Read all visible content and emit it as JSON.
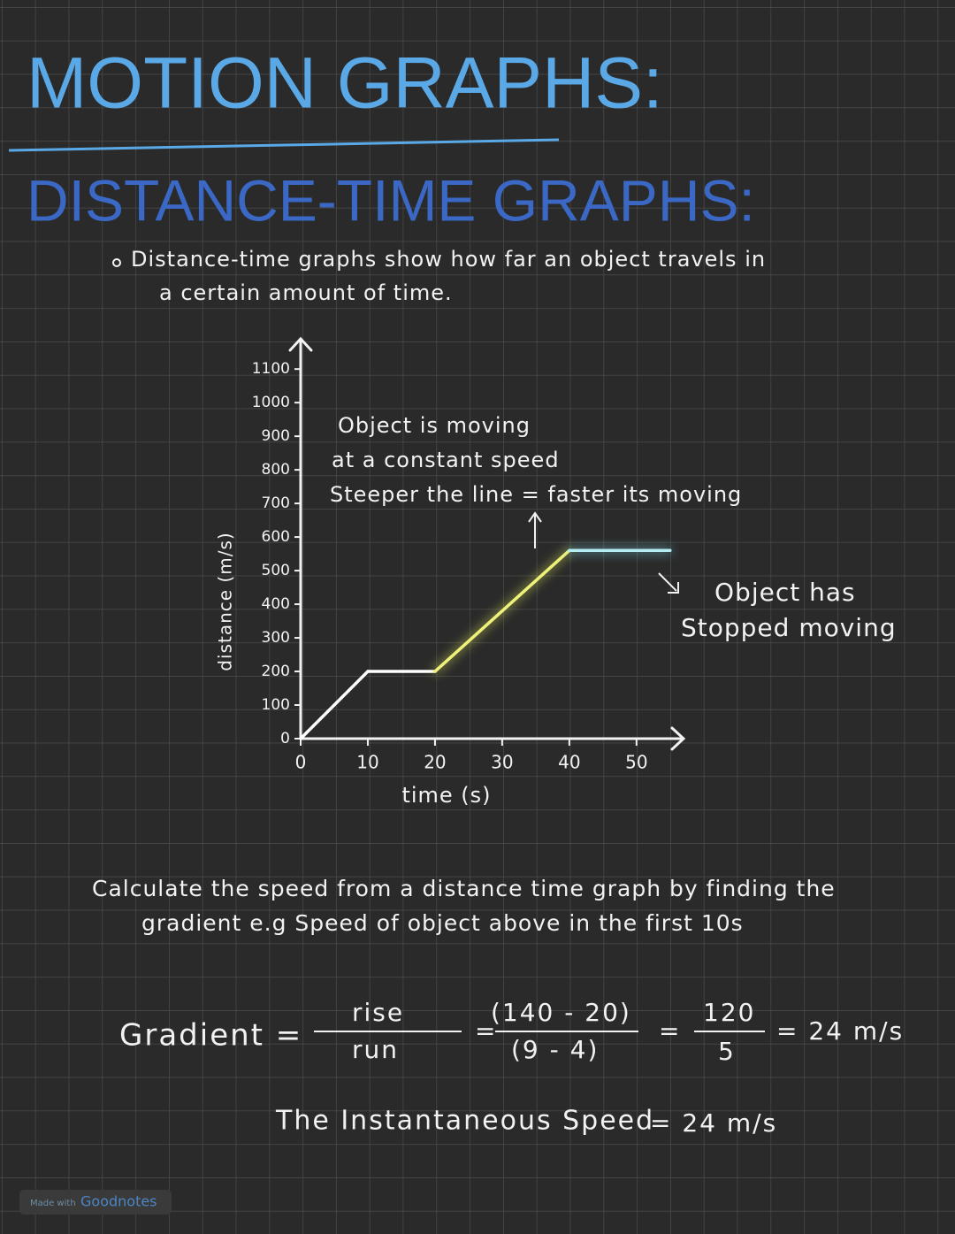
{
  "header": {
    "title": "MOTION GRAPHS:",
    "subtitle": "DISTANCE-TIME GRAPHS:"
  },
  "intro": [
    "Distance-time graphs show how far an  object travels in",
    "a  certain amount of time."
  ],
  "chart_data": {
    "type": "line",
    "x_label": "time (s)",
    "y_label": "distance (m/s)",
    "x": [
      0,
      10,
      20,
      40,
      55
    ],
    "values": [
      0,
      200,
      200,
      560,
      560
    ],
    "segment_colors": [
      "#ffffff",
      "#ffffff",
      "#eef27a",
      "#b5ecf2"
    ],
    "xlim": [
      0,
      57
    ],
    "ylim": [
      0,
      1190
    ],
    "xticks": [
      0,
      10,
      20,
      30,
      40,
      50
    ],
    "yticks": [
      0,
      100,
      200,
      300,
      400,
      500,
      600,
      700,
      800,
      900,
      1000,
      1100
    ]
  },
  "annotations": [
    "Object is moving",
    "at  a  constant  speed",
    "Steeper the  line = faster its  moving",
    "Object  has",
    "Stopped moving"
  ],
  "explanation": [
    "Calculate  the  speed  from a  distance  time  graph  by  finding  the",
    "gradient  e.g  Speed  of  object  above  in  the  first   10s"
  ],
  "calculation": {
    "label": "Gradient =",
    "rise": "rise",
    "run": "run",
    "equals": "=",
    "numerator": "(140 - 20)",
    "denominator": "(9  - 4)",
    "numerator_result": "120",
    "denominator_result": "5",
    "result": "= 24 m/s"
  },
  "conclusion": {
    "label": "The Instantaneous Speed",
    "value": "= 24 m/s"
  },
  "footer": {
    "made_with": "Made with",
    "brand": "Goodnotes"
  }
}
